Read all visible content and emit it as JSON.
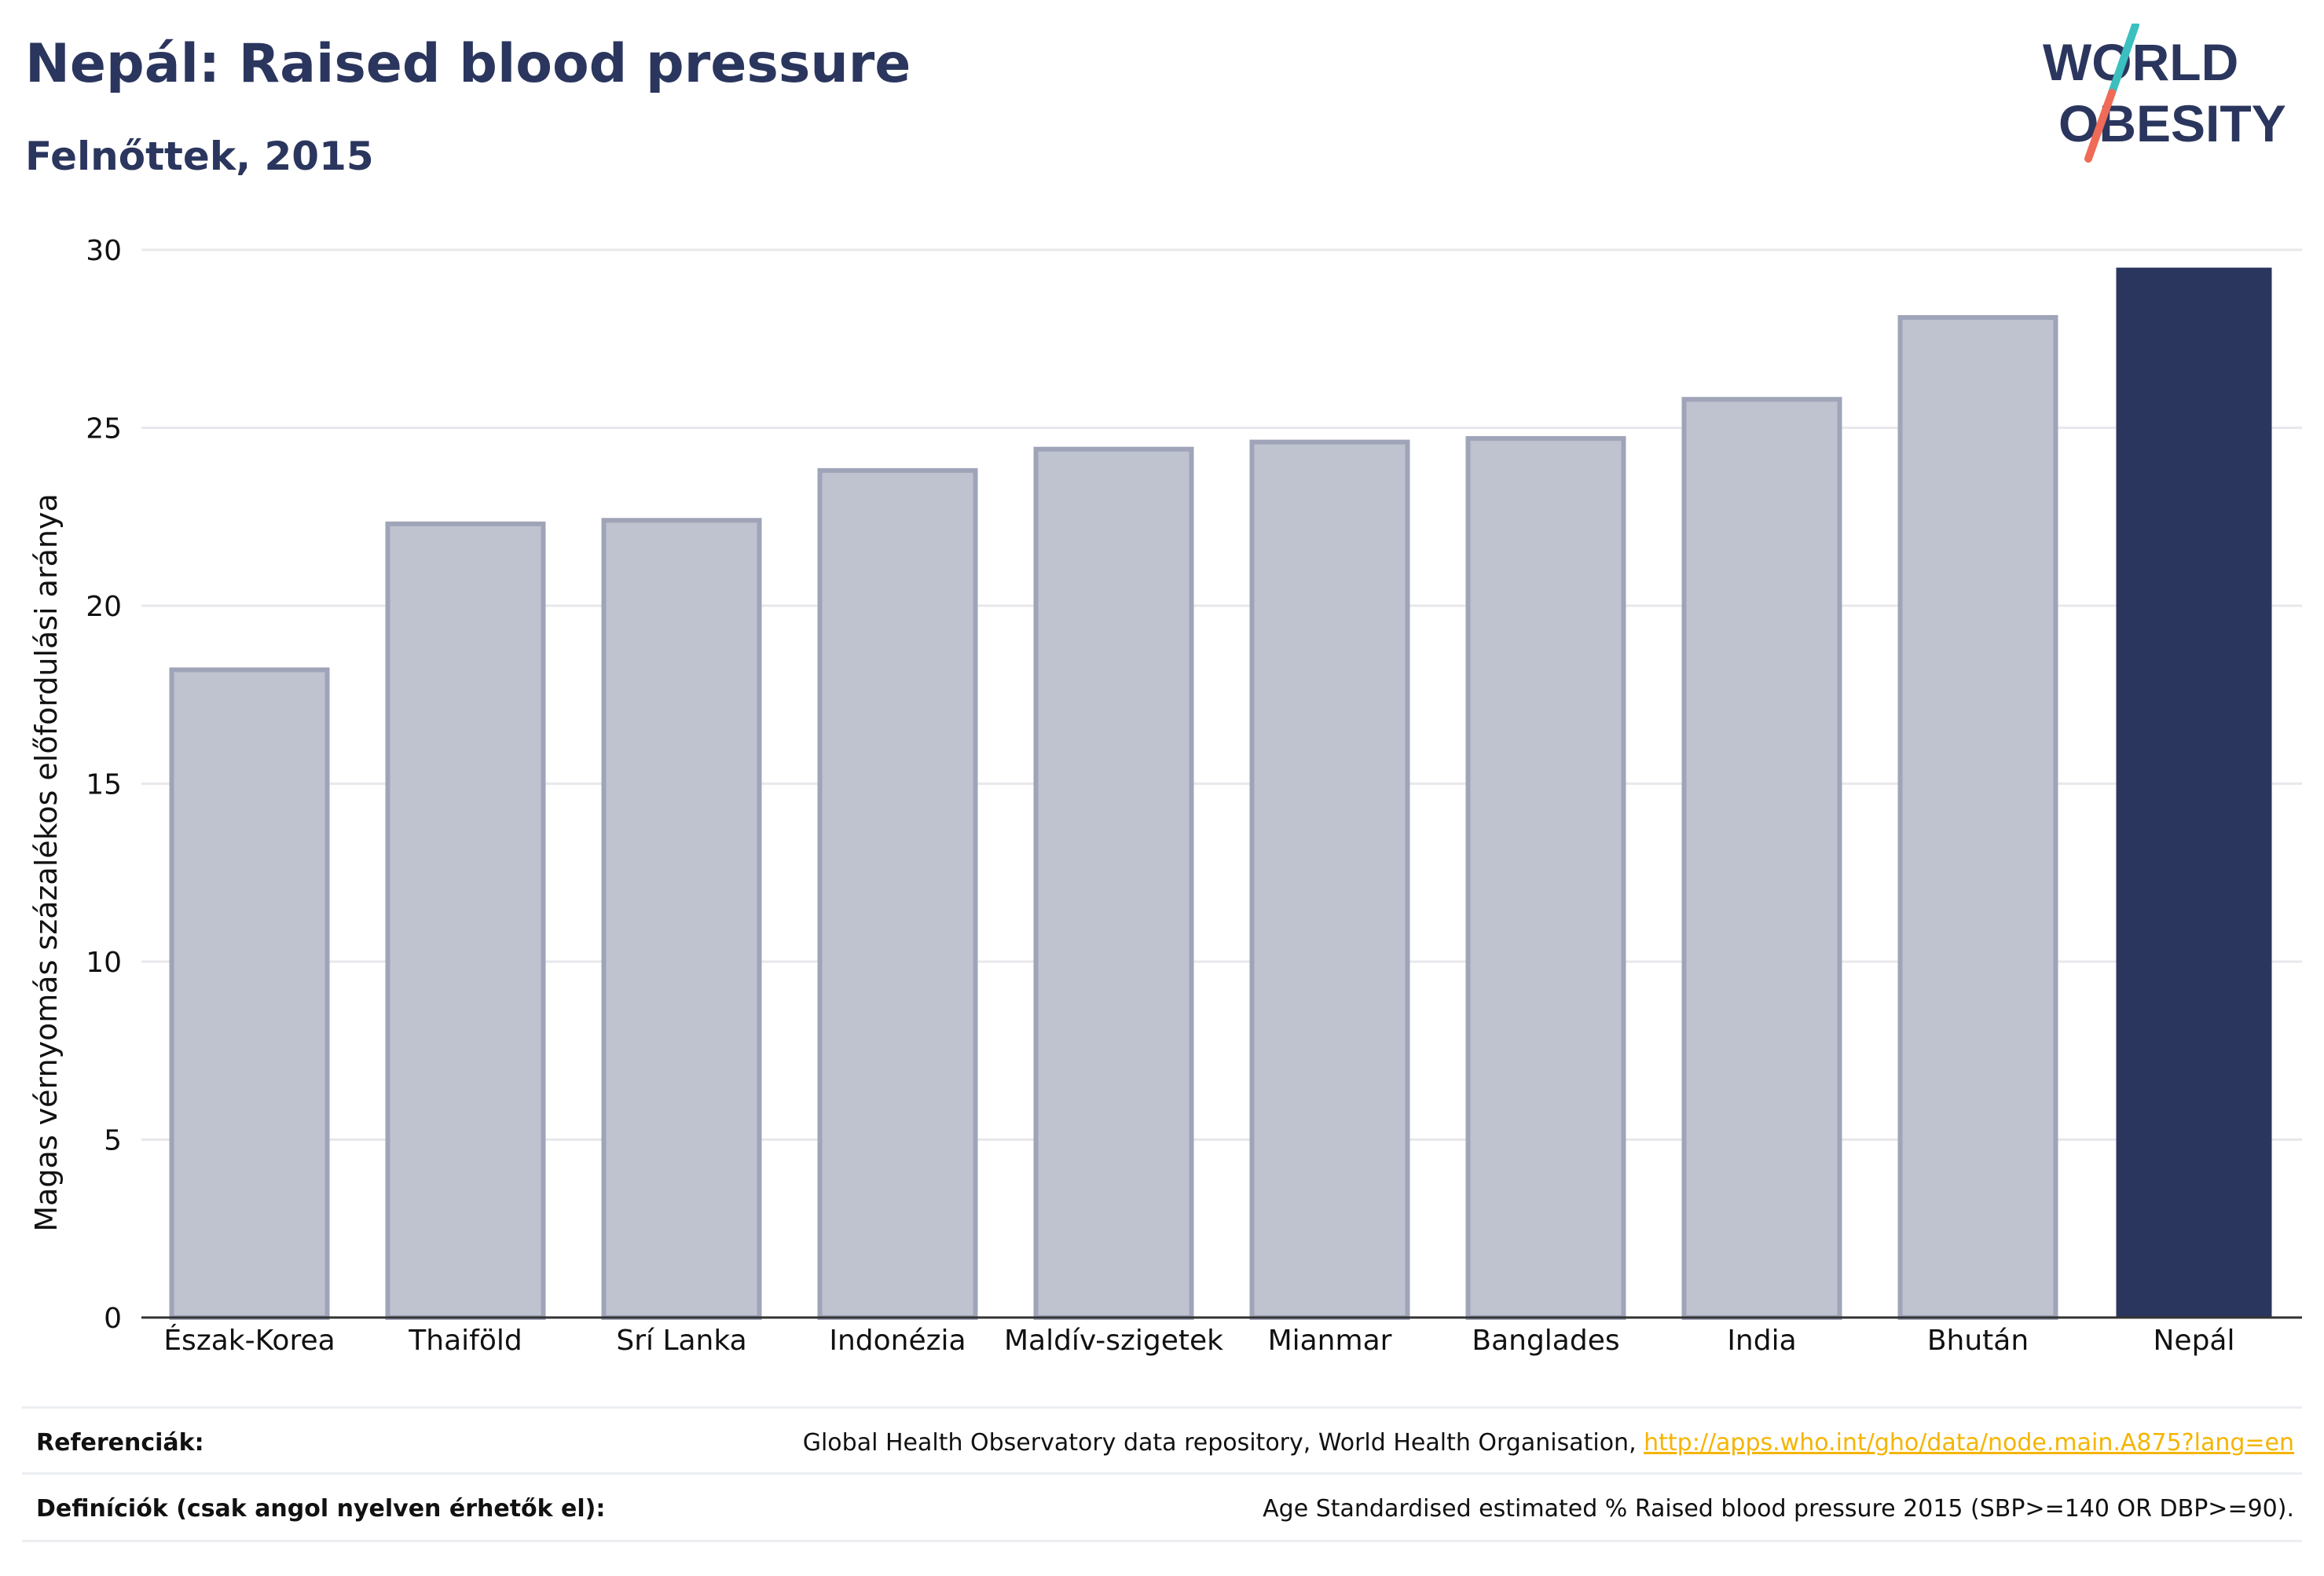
{
  "header": {
    "title": "Nepál: Raised blood pressure",
    "subtitle": "Felnőttek, 2015"
  },
  "logo": {
    "line1": "WORLD",
    "line2": "OBESITY",
    "colors": {
      "text": "#2b365e",
      "slash_top": "#3bbfbf",
      "slash_bottom": "#ef6b57"
    }
  },
  "colors": {
    "highlight_bar": "#2b365e",
    "other_bar_fill": "#bfc2cf",
    "other_bar_stroke": "#9fa4b8",
    "gridline": "#e8e8ec",
    "axis_line": "#333333"
  },
  "chart_data": {
    "type": "bar",
    "categories": [
      "Észak-Korea",
      "Thaiföld",
      "Srí Lanka",
      "Indonézia",
      "Maldív-szigetek",
      "Mianmar",
      "Banglades",
      "India",
      "Bhután",
      "Nepál"
    ],
    "values": [
      18.2,
      22.3,
      22.4,
      23.8,
      24.4,
      24.6,
      24.7,
      25.8,
      28.1,
      29.5
    ],
    "highlight": "Nepál",
    "ylabel": "Magas vérnyomás százalékos előfordulási aránya",
    "xlabel": "",
    "ylim": [
      0,
      30
    ],
    "yticks": [
      0,
      5,
      10,
      15,
      20,
      25,
      30
    ],
    "grid": true
  },
  "footer": {
    "references_label": "Referenciák:",
    "references_text": "Global Health Observatory data repository, World Health Organisation, ",
    "references_link": "http://apps.who.int/gho/data/node.main.A875?lang=en",
    "definitions_label": "Definíciók (csak angol nyelven érhetők el):",
    "definitions_text": "Age Standardised estimated % Raised blood pressure 2015 (SBP>=140 OR DBP>=90)."
  }
}
